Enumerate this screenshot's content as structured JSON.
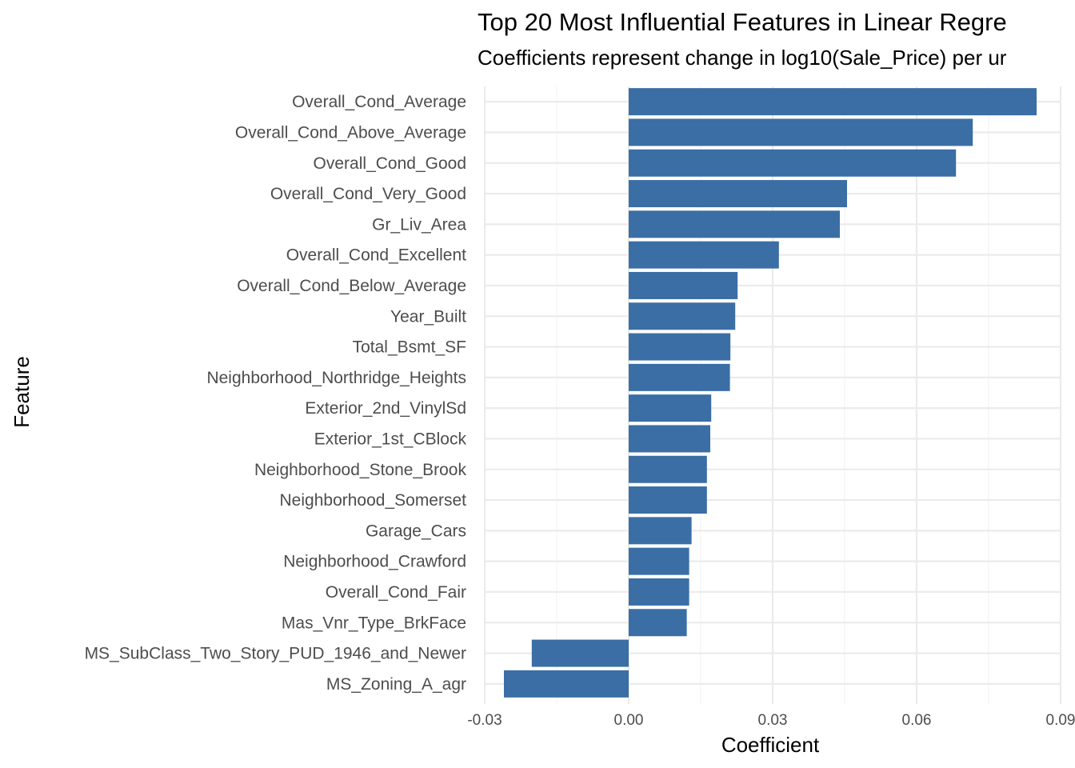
{
  "chart_data": {
    "type": "bar",
    "orientation": "horizontal",
    "title": "Top 20 Most Influential Features in Linear Regre",
    "subtitle": "Coefficients represent change in log10(Sale_Price) per ur",
    "xlabel": "Coefficient",
    "ylabel": "Feature",
    "xlim": [
      -0.03,
      0.09
    ],
    "xticks": [
      -0.03,
      0.0,
      0.03,
      0.06,
      0.09
    ],
    "xtick_labels": [
      "-0.03",
      "0.00",
      "0.03",
      "0.06",
      "0.09"
    ],
    "bar_color": "#3a6ea5",
    "grid": true,
    "categories": [
      "Overall_Cond_Average",
      "Overall_Cond_Above_Average",
      "Overall_Cond_Good",
      "Overall_Cond_Very_Good",
      "Gr_Liv_Area",
      "Overall_Cond_Excellent",
      "Overall_Cond_Below_Average",
      "Year_Built",
      "Total_Bsmt_SF",
      "Neighborhood_Northridge_Heights",
      "Exterior_2nd_VinylSd",
      "Exterior_1st_CBlock",
      "Neighborhood_Stone_Brook",
      "Neighborhood_Somerset",
      "Garage_Cars",
      "Neighborhood_Crawford",
      "Overall_Cond_Fair",
      "Mas_Vnr_Type_BrkFace",
      "MS_SubClass_Two_Story_PUD_1946_and_Newer",
      "MS_Zoning_A_agr"
    ],
    "values": [
      0.085,
      0.0717,
      0.0682,
      0.0455,
      0.044,
      0.0313,
      0.0227,
      0.0222,
      0.0212,
      0.0211,
      0.0172,
      0.017,
      0.0163,
      0.0163,
      0.0131,
      0.0126,
      0.0126,
      0.0121,
      -0.0202,
      -0.026
    ]
  }
}
